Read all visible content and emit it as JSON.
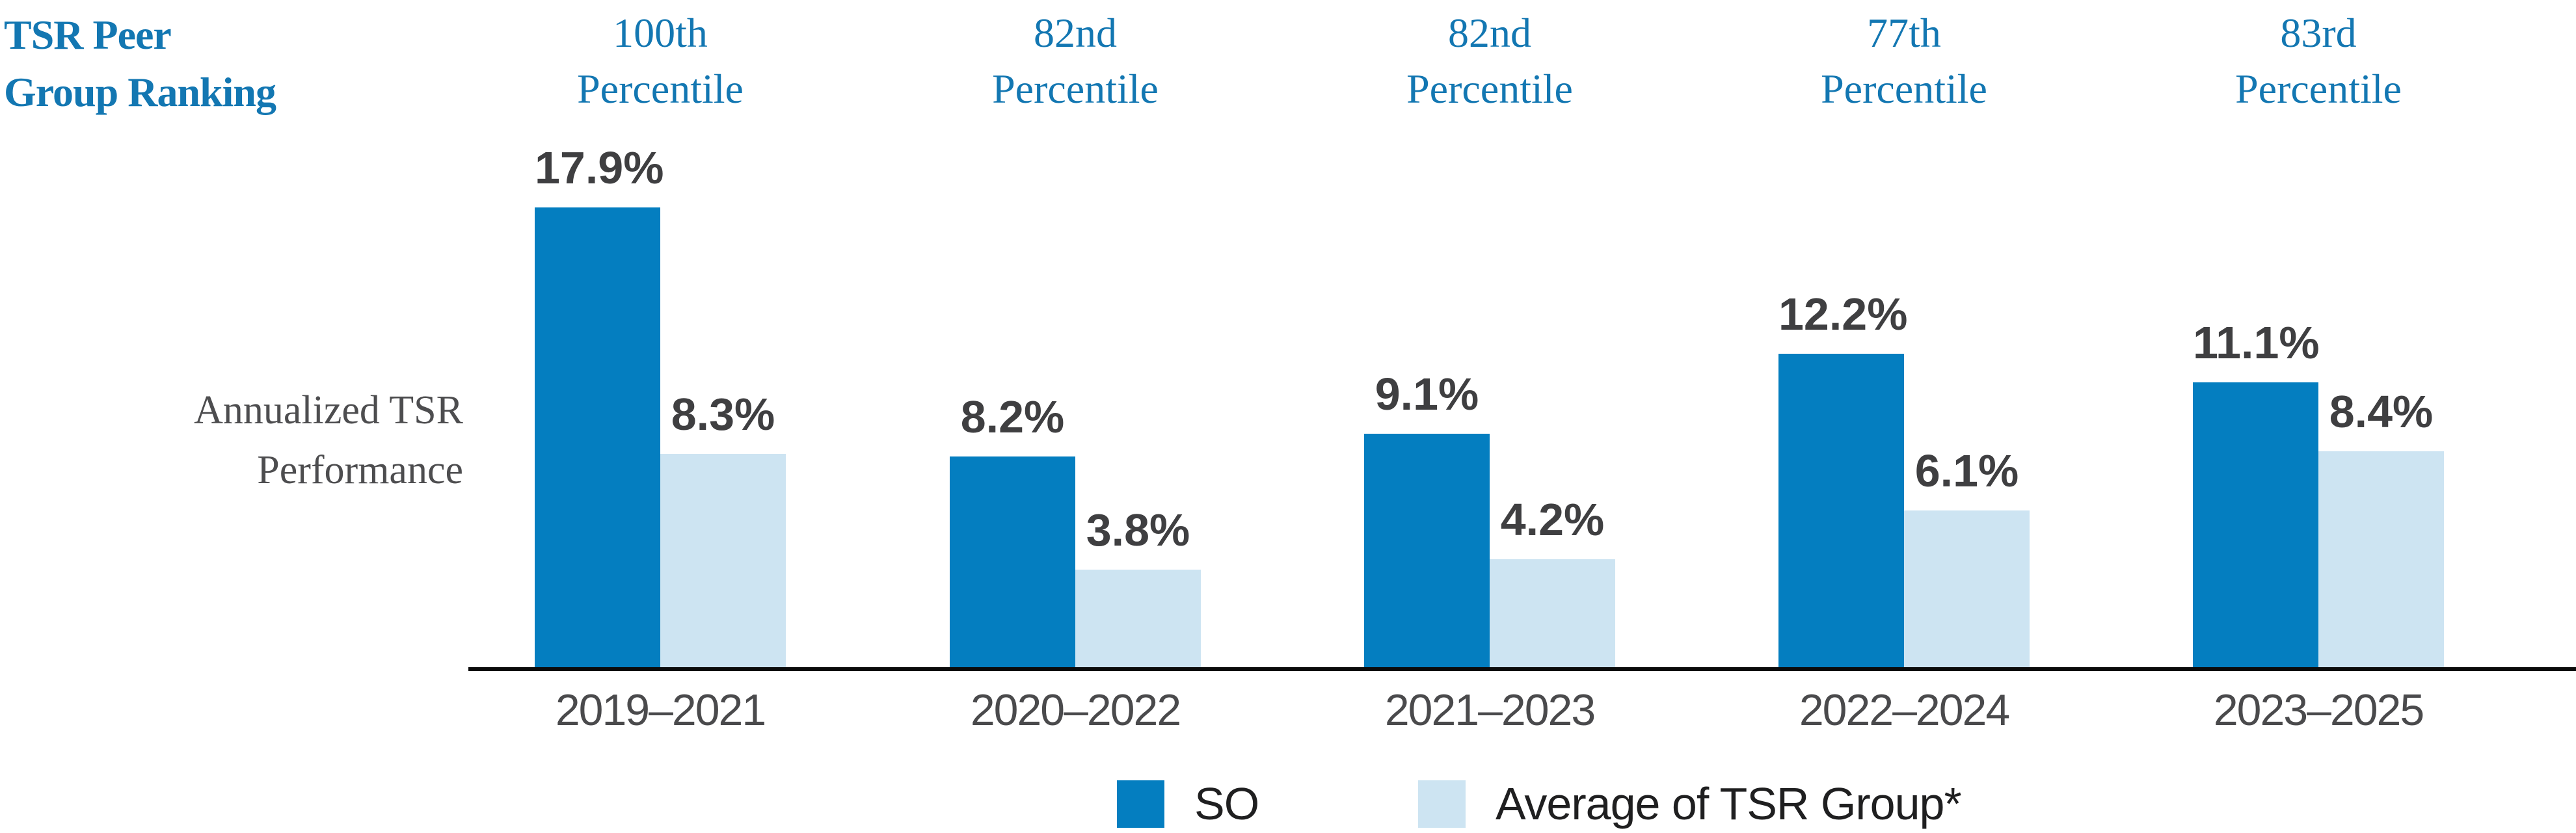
{
  "chart_data": {
    "type": "bar",
    "title": {
      "line1": "TSR Peer",
      "line2": "Group Ranking"
    },
    "y_axis_label": {
      "line1": "Annualized TSR",
      "line2": "Performance"
    },
    "percentile_word": "Percentile",
    "percentiles": [
      "100th",
      "82nd",
      "82nd",
      "77th",
      "83rd"
    ],
    "categories": [
      "2019–2021",
      "2020–2022",
      "2021–2023",
      "2022–2024",
      "2023–2025"
    ],
    "series": [
      {
        "name": "SO",
        "values": [
          17.9,
          8.2,
          9.1,
          12.2,
          11.1
        ],
        "labels": [
          "17.9%",
          "8.2%",
          "9.1%",
          "12.2%",
          "11.1%"
        ],
        "color": "#047EC0"
      },
      {
        "name": "Average of TSR Group*",
        "values": [
          8.3,
          3.8,
          4.2,
          6.1,
          8.4
        ],
        "labels": [
          "8.3%",
          "3.8%",
          "4.2%",
          "6.1%",
          "8.4%"
        ],
        "color": "#CDE4F2"
      }
    ],
    "ylim": [
      0,
      18
    ],
    "grid": false,
    "legend_position": "bottom",
    "axis_color": "#0B0B0B",
    "heading_color": "#1377B2"
  }
}
